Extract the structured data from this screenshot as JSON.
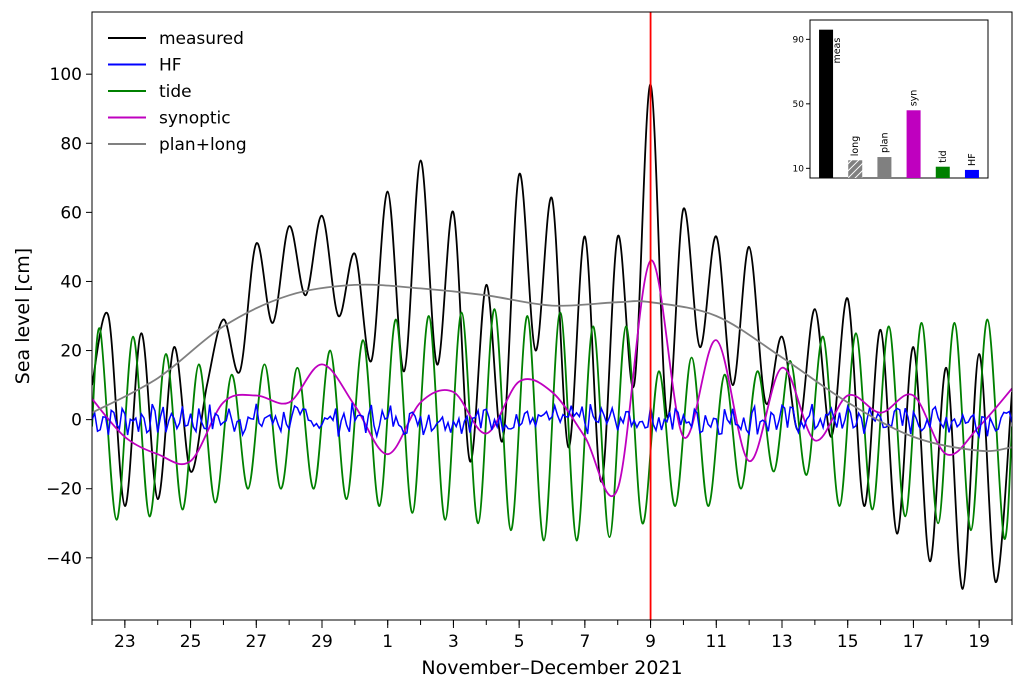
{
  "chart_data": [
    {
      "type": "line",
      "xlabel": "November–December 2021",
      "ylabel": "Sea level [cm]",
      "ylim": [
        -58,
        118
      ],
      "x_range_days": [
        "2021-11-22",
        "2021-12-20"
      ],
      "x_ticks": [
        {
          "date": "2021-11-23",
          "label": "23"
        },
        {
          "date": "2021-11-25",
          "label": "25"
        },
        {
          "date": "2021-11-27",
          "label": "27"
        },
        {
          "date": "2021-11-29",
          "label": "29"
        },
        {
          "date": "2021-12-01",
          "label": "1"
        },
        {
          "date": "2021-12-03",
          "label": "3"
        },
        {
          "date": "2021-12-05",
          "label": "5"
        },
        {
          "date": "2021-12-07",
          "label": "7"
        },
        {
          "date": "2021-12-09",
          "label": "9"
        },
        {
          "date": "2021-12-11",
          "label": "11"
        },
        {
          "date": "2021-12-13",
          "label": "13"
        },
        {
          "date": "2021-12-15",
          "label": "15"
        },
        {
          "date": "2021-12-17",
          "label": "17"
        },
        {
          "date": "2021-12-19",
          "label": "19"
        }
      ],
      "y_ticks": [
        -40,
        -20,
        0,
        20,
        40,
        60,
        80,
        100
      ],
      "vertical_line": {
        "date": "2021-12-09",
        "color": "#ff0000"
      },
      "legend_position": "top-left",
      "series": [
        {
          "name": "measured",
          "color": "#000000",
          "points": [
            [
              "2021-11-22",
              10
            ],
            [
              "2021-11-22T12:00",
              30
            ],
            [
              "2021-11-23",
              -25
            ],
            [
              "2021-11-23T12:00",
              25
            ],
            [
              "2021-11-24",
              -23
            ],
            [
              "2021-11-24T12:00",
              21
            ],
            [
              "2021-11-25",
              -15
            ],
            [
              "2021-11-25T12:00",
              10
            ],
            [
              "2021-11-26",
              29
            ],
            [
              "2021-11-26T12:00",
              14
            ],
            [
              "2021-11-27",
              51
            ],
            [
              "2021-11-27T12:00",
              28
            ],
            [
              "2021-11-28",
              56
            ],
            [
              "2021-11-28T12:00",
              36
            ],
            [
              "2021-11-29",
              59
            ],
            [
              "2021-11-29T12:00",
              30
            ],
            [
              "2021-11-30",
              48
            ],
            [
              "2021-11-30T12:00",
              17
            ],
            [
              "2021-12-01",
              66
            ],
            [
              "2021-12-01T12:00",
              14
            ],
            [
              "2021-12-02",
              75
            ],
            [
              "2021-12-02T12:00",
              16
            ],
            [
              "2021-12-03",
              60
            ],
            [
              "2021-12-03T12:00",
              -12
            ],
            [
              "2021-12-04",
              39
            ],
            [
              "2021-12-04T12:00",
              -6
            ],
            [
              "2021-12-05",
              71
            ],
            [
              "2021-12-05T12:00",
              20
            ],
            [
              "2021-12-06",
              64
            ],
            [
              "2021-12-06T12:00",
              -8
            ],
            [
              "2021-12-07",
              53
            ],
            [
              "2021-12-07T12:00",
              -18
            ],
            [
              "2021-12-08",
              53
            ],
            [
              "2021-12-08T12:00",
              10
            ],
            [
              "2021-12-09",
              97
            ],
            [
              "2021-12-09T12:00",
              1
            ],
            [
              "2021-12-10",
              61
            ],
            [
              "2021-12-10T12:00",
              21
            ],
            [
              "2021-12-11",
              53
            ],
            [
              "2021-12-11T12:00",
              10
            ],
            [
              "2021-12-12",
              50
            ],
            [
              "2021-12-12T12:00",
              5
            ],
            [
              "2021-12-13",
              24
            ],
            [
              "2021-12-13T12:00",
              -3
            ],
            [
              "2021-12-14",
              32
            ],
            [
              "2021-12-14T12:00",
              -5
            ],
            [
              "2021-12-15",
              35
            ],
            [
              "2021-12-15T12:00",
              -25
            ],
            [
              "2021-12-16",
              26
            ],
            [
              "2021-12-16T12:00",
              -33
            ],
            [
              "2021-12-17",
              21
            ],
            [
              "2021-12-17T12:00",
              -41
            ],
            [
              "2021-12-18",
              15
            ],
            [
              "2021-12-18T12:00",
              -49
            ],
            [
              "2021-12-19",
              19
            ],
            [
              "2021-12-19T12:00",
              -47
            ],
            [
              "2021-12-20",
              8
            ]
          ]
        },
        {
          "name": "HF",
          "color": "#0000ff",
          "points": [
            [
              "2021-11-22",
              0
            ],
            [
              "2021-12-20",
              0
            ]
          ]
        },
        {
          "name": "tide",
          "color": "#008000",
          "points": [
            [
              "2021-11-22",
              -2
            ],
            [
              "2021-11-22T06:00",
              26
            ],
            [
              "2021-11-22T18:00",
              -29
            ],
            [
              "2021-11-23T06:00",
              24
            ],
            [
              "2021-11-23T18:00",
              -28
            ],
            [
              "2021-11-24T06:00",
              19
            ],
            [
              "2021-11-24T18:00",
              -26
            ],
            [
              "2021-11-25T06:00",
              16
            ],
            [
              "2021-11-25T18:00",
              -24
            ],
            [
              "2021-11-26T06:00",
              13
            ],
            [
              "2021-11-26T18:00",
              -20
            ],
            [
              "2021-11-27T06:00",
              16
            ],
            [
              "2021-11-27T18:00",
              -20
            ],
            [
              "2021-11-28T06:00",
              15
            ],
            [
              "2021-11-28T18:00",
              -20
            ],
            [
              "2021-11-29T06:00",
              20
            ],
            [
              "2021-11-29T18:00",
              -23
            ],
            [
              "2021-11-30T06:00",
              23
            ],
            [
              "2021-11-30T18:00",
              -25
            ],
            [
              "2021-12-01T06:00",
              29
            ],
            [
              "2021-12-01T18:00",
              -27
            ],
            [
              "2021-12-02T06:00",
              30
            ],
            [
              "2021-12-02T18:00",
              -29
            ],
            [
              "2021-12-03T06:00",
              31
            ],
            [
              "2021-12-03T18:00",
              -30
            ],
            [
              "2021-12-04T06:00",
              32
            ],
            [
              "2021-12-04T18:00",
              -32
            ],
            [
              "2021-12-05T06:00",
              30
            ],
            [
              "2021-12-05T18:00",
              -35
            ],
            [
              "2021-12-06T06:00",
              31
            ],
            [
              "2021-12-06T18:00",
              -35
            ],
            [
              "2021-12-07T06:00",
              27
            ],
            [
              "2021-12-07T18:00",
              -34
            ],
            [
              "2021-12-08T06:00",
              27
            ],
            [
              "2021-12-08T18:00",
              -30
            ],
            [
              "2021-12-09T06:00",
              14
            ],
            [
              "2021-12-09T18:00",
              -25
            ],
            [
              "2021-12-10T06:00",
              18
            ],
            [
              "2021-12-10T18:00",
              -25
            ],
            [
              "2021-12-11T06:00",
              13
            ],
            [
              "2021-12-11T18:00",
              -20
            ],
            [
              "2021-12-12T06:00",
              14
            ],
            [
              "2021-12-12T18:00",
              -15
            ],
            [
              "2021-12-13T06:00",
              17
            ],
            [
              "2021-12-13T18:00",
              -16
            ],
            [
              "2021-12-14T06:00",
              24
            ],
            [
              "2021-12-14T18:00",
              -25
            ],
            [
              "2021-12-15T06:00",
              25
            ],
            [
              "2021-12-15T18:00",
              -26
            ],
            [
              "2021-12-16T06:00",
              27
            ],
            [
              "2021-12-16T18:00",
              -28
            ],
            [
              "2021-12-17T06:00",
              28
            ],
            [
              "2021-12-17T18:00",
              -30
            ],
            [
              "2021-12-18T06:00",
              28
            ],
            [
              "2021-12-18T18:00",
              -32
            ],
            [
              "2021-12-19T06:00",
              29
            ],
            [
              "2021-12-19T18:00",
              -34
            ],
            [
              "2021-12-20",
              -2
            ]
          ]
        },
        {
          "name": "synoptic",
          "color": "#bf00bf",
          "points": [
            [
              "2021-11-22",
              6
            ],
            [
              "2021-11-23",
              -5
            ],
            [
              "2021-11-24",
              -10
            ],
            [
              "2021-11-25",
              -12
            ],
            [
              "2021-11-26",
              5
            ],
            [
              "2021-11-27",
              7
            ],
            [
              "2021-11-28",
              5
            ],
            [
              "2021-11-29",
              16
            ],
            [
              "2021-11-30",
              4
            ],
            [
              "2021-12-01",
              -10
            ],
            [
              "2021-12-02",
              5
            ],
            [
              "2021-12-03",
              8
            ],
            [
              "2021-12-04",
              -4
            ],
            [
              "2021-12-05",
              11
            ],
            [
              "2021-12-06",
              8
            ],
            [
              "2021-12-07",
              -5
            ],
            [
              "2021-12-08",
              -20
            ],
            [
              "2021-12-09",
              46
            ],
            [
              "2021-12-10",
              -5
            ],
            [
              "2021-12-11",
              23
            ],
            [
              "2021-12-12",
              -12
            ],
            [
              "2021-12-13",
              15
            ],
            [
              "2021-12-14",
              -6
            ],
            [
              "2021-12-15",
              7
            ],
            [
              "2021-12-16",
              2
            ],
            [
              "2021-12-17",
              7
            ],
            [
              "2021-12-18",
              -10
            ],
            [
              "2021-12-19",
              -2
            ],
            [
              "2021-12-20",
              9
            ]
          ]
        },
        {
          "name": "plan+long",
          "color": "#808080",
          "points": [
            [
              "2021-11-22",
              2
            ],
            [
              "2021-11-24",
              12
            ],
            [
              "2021-11-26",
              27
            ],
            [
              "2021-11-28",
              36
            ],
            [
              "2021-11-30",
              39
            ],
            [
              "2021-12-02",
              38
            ],
            [
              "2021-12-04",
              36
            ],
            [
              "2021-12-06",
              33
            ],
            [
              "2021-12-08",
              34
            ],
            [
              "2021-12-09",
              34
            ],
            [
              "2021-12-11",
              30
            ],
            [
              "2021-12-13",
              18
            ],
            [
              "2021-12-15",
              5
            ],
            [
              "2021-12-17",
              -5
            ],
            [
              "2021-12-19",
              -9
            ],
            [
              "2021-12-20",
              -8
            ]
          ]
        }
      ]
    },
    {
      "type": "bar",
      "categories": [
        "meas",
        "long",
        "plan",
        "syn",
        "tid",
        "HF"
      ],
      "values": [
        96,
        15,
        17,
        46,
        11,
        9
      ],
      "colors": [
        "#000000",
        "#808080",
        "#808080",
        "#bf00bf",
        "#008000",
        "#0000ff"
      ],
      "hatched": [
        false,
        true,
        false,
        false,
        false,
        false
      ],
      "y_ticks": [
        10,
        50,
        90
      ],
      "ylim": [
        4,
        102
      ]
    }
  ]
}
